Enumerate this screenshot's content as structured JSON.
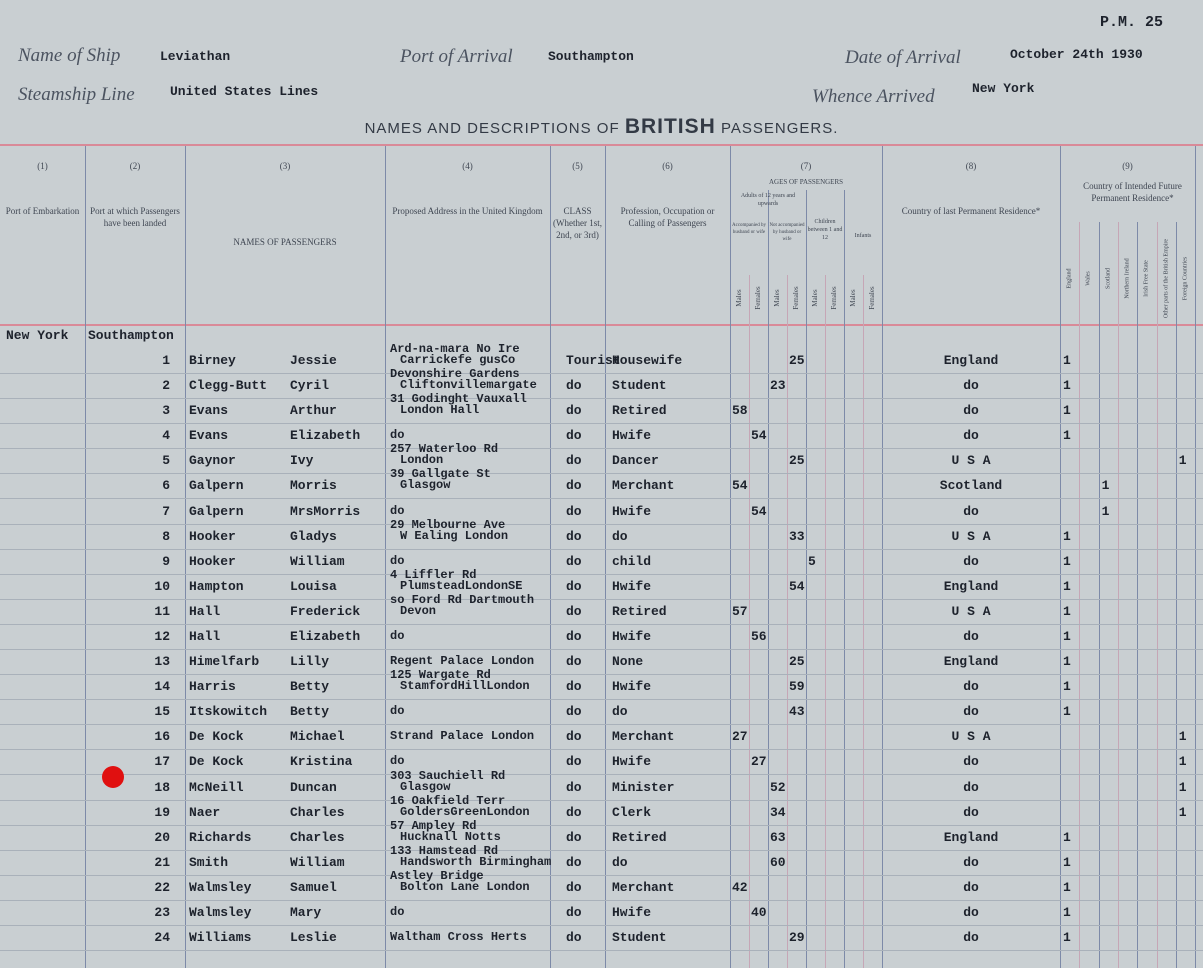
{
  "page_ref": "P.M. 25",
  "header": {
    "ship": {
      "label": "Name of Ship",
      "value": "Leviathan"
    },
    "port": {
      "label": "Port of Arrival",
      "value": "Southampton"
    },
    "date": {
      "label": "Date of Arrival",
      "value": "October 24th 1930"
    },
    "line": {
      "label": "Steamship Line",
      "value": "United States Lines"
    },
    "whence": {
      "label": "Whence Arrived",
      "value": "New York"
    }
  },
  "title": {
    "before": "NAMES AND DESCRIPTIONS OF",
    "emphasis": "BRITISH",
    "after": "PASSENGERS."
  },
  "columns": [
    {
      "num": "(1)",
      "label": "Port of Embarkation"
    },
    {
      "num": "(2)",
      "label": "Port at which Passengers have been landed"
    },
    {
      "num": "(3)",
      "label": "NAMES OF PASSENGERS"
    },
    {
      "num": "(4)",
      "label": "Proposed Address in the United Kingdom"
    },
    {
      "num": "(5)",
      "label": "CLASS (Whether 1st, 2nd, or 3rd)"
    },
    {
      "num": "(6)",
      "label": "Profession, Occupation or Calling of Passengers"
    },
    {
      "num": "(7)",
      "label": "AGES OF PASSENGERS"
    },
    {
      "num": "(8)",
      "label": "Country of last Permanent Residence*"
    },
    {
      "num": "(9)",
      "label": "Country of Intended Future Permanent Residence*"
    }
  ],
  "ages_header": {
    "adults": "Adults of 12 years and upwards",
    "accompanied": "Accompanied by husband or wife",
    "unaccompanied": "Not accompanied by husband or wife",
    "children": "Children between 1 and 12",
    "infants": "Infants",
    "male": "Males",
    "female": "Females"
  },
  "residence_countries": [
    "England",
    "Wales",
    "Scotland",
    "Northern Ireland",
    "Irish Free State",
    "Other parts of the British Empire",
    "Foreign Countries"
  ],
  "embarkation": {
    "port": "New York",
    "landed": "Southampton"
  },
  "rows": [
    {
      "no": 1,
      "surname": "Birney",
      "given": "Jessie",
      "address": [
        "Ard-na-mara No Ire",
        "Carrickefe gusCo"
      ],
      "class": "Tourist",
      "occupation": "Housewife",
      "ages": [
        null,
        null,
        null,
        25,
        null,
        null,
        null,
        null
      ],
      "last_residence": "England",
      "intended": [
        1,
        null,
        null,
        null,
        null,
        null,
        null
      ]
    },
    {
      "no": 2,
      "surname": "Clegg-Butt",
      "given": "Cyril",
      "address": [
        "Devonshire Gardens",
        "Cliftonvillemargate"
      ],
      "class": "do",
      "occupation": "Student",
      "ages": [
        null,
        null,
        23,
        null,
        null,
        null,
        null,
        null
      ],
      "last_residence": "do",
      "intended": [
        1,
        null,
        null,
        null,
        null,
        null,
        null
      ]
    },
    {
      "no": 3,
      "surname": "Evans",
      "given": "Arthur",
      "address": [
        "31 Godinght Vauxall",
        "London Hall"
      ],
      "class": "do",
      "occupation": "Retired",
      "ages": [
        58,
        null,
        null,
        null,
        null,
        null,
        null,
        null
      ],
      "last_residence": "do",
      "intended": [
        1,
        null,
        null,
        null,
        null,
        null,
        null
      ]
    },
    {
      "no": 4,
      "surname": "Evans",
      "given": "Elizabeth",
      "address": [
        "do"
      ],
      "class": "do",
      "occupation": "Hwife",
      "ages": [
        null,
        54,
        null,
        null,
        null,
        null,
        null,
        null
      ],
      "last_residence": "do",
      "intended": [
        1,
        null,
        null,
        null,
        null,
        null,
        null
      ]
    },
    {
      "no": 5,
      "surname": "Gaynor",
      "given": "Ivy",
      "address": [
        "257 Waterloo Rd",
        "London"
      ],
      "class": "do",
      "occupation": "Dancer",
      "ages": [
        null,
        null,
        null,
        25,
        null,
        null,
        null,
        null
      ],
      "last_residence": "U S A",
      "intended": [
        null,
        null,
        null,
        null,
        null,
        null,
        1
      ]
    },
    {
      "no": 6,
      "surname": "Galpern",
      "given": "Morris",
      "address": [
        "39 Gallgate St",
        "Glasgow"
      ],
      "class": "do",
      "occupation": "Merchant",
      "ages": [
        54,
        null,
        null,
        null,
        null,
        null,
        null,
        null
      ],
      "last_residence": "Scotland",
      "intended": [
        null,
        null,
        1,
        null,
        null,
        null,
        null
      ]
    },
    {
      "no": 7,
      "surname": "Galpern",
      "given": "MrsMorris",
      "address": [
        "do"
      ],
      "class": "do",
      "occupation": "Hwife",
      "ages": [
        null,
        54,
        null,
        null,
        null,
        null,
        null,
        null
      ],
      "last_residence": "do",
      "intended": [
        null,
        null,
        1,
        null,
        null,
        null,
        null
      ]
    },
    {
      "no": 8,
      "surname": "Hooker",
      "given": "Gladys",
      "address": [
        "29 Melbourne Ave",
        "W Ealing London"
      ],
      "class": "do",
      "occupation": "do",
      "ages": [
        null,
        null,
        null,
        33,
        null,
        null,
        null,
        null
      ],
      "last_residence": "U S A",
      "intended": [
        1,
        null,
        null,
        null,
        null,
        null,
        null
      ]
    },
    {
      "no": 9,
      "surname": "Hooker",
      "given": "William",
      "address": [
        "do"
      ],
      "class": "do",
      "occupation": "child",
      "ages": [
        null,
        null,
        null,
        null,
        5,
        null,
        null,
        null
      ],
      "last_residence": "do",
      "intended": [
        1,
        null,
        null,
        null,
        null,
        null,
        null
      ]
    },
    {
      "no": 10,
      "surname": "Hampton",
      "given": "Louisa",
      "address": [
        "4 Liffler Rd",
        "PlumsteadLondonSE"
      ],
      "class": "do",
      "occupation": "Hwife",
      "ages": [
        null,
        null,
        null,
        54,
        null,
        null,
        null,
        null
      ],
      "last_residence": "England",
      "intended": [
        1,
        null,
        null,
        null,
        null,
        null,
        null
      ]
    },
    {
      "no": 11,
      "surname": "Hall",
      "given": "Frederick",
      "address": [
        "so Ford Rd Dartmouth",
        "Devon"
      ],
      "class": "do",
      "occupation": "Retired",
      "ages": [
        57,
        null,
        null,
        null,
        null,
        null,
        null,
        null
      ],
      "last_residence": "U S A",
      "intended": [
        1,
        null,
        null,
        null,
        null,
        null,
        null
      ]
    },
    {
      "no": 12,
      "surname": "Hall",
      "given": "Elizabeth",
      "address": [
        "do"
      ],
      "class": "do",
      "occupation": "Hwife",
      "ages": [
        null,
        56,
        null,
        null,
        null,
        null,
        null,
        null
      ],
      "last_residence": "do",
      "intended": [
        1,
        null,
        null,
        null,
        null,
        null,
        null
      ]
    },
    {
      "no": 13,
      "surname": "Himelfarb",
      "given": "Lilly",
      "address": [
        "Regent Palace London"
      ],
      "class": "do",
      "occupation": "None",
      "ages": [
        null,
        null,
        null,
        25,
        null,
        null,
        null,
        null
      ],
      "last_residence": "England",
      "intended": [
        1,
        null,
        null,
        null,
        null,
        null,
        null
      ]
    },
    {
      "no": 14,
      "surname": "Harris",
      "given": "Betty",
      "address": [
        "125 Wargate Rd",
        "StamfordHillLondon"
      ],
      "class": "do",
      "occupation": "Hwife",
      "ages": [
        null,
        null,
        null,
        59,
        null,
        null,
        null,
        null
      ],
      "last_residence": "do",
      "intended": [
        1,
        null,
        null,
        null,
        null,
        null,
        null
      ]
    },
    {
      "no": 15,
      "surname": "Itskowitch",
      "given": "Betty",
      "address": [
        "do"
      ],
      "class": "do",
      "occupation": "do",
      "ages": [
        null,
        null,
        null,
        43,
        null,
        null,
        null,
        null
      ],
      "last_residence": "do",
      "intended": [
        1,
        null,
        null,
        null,
        null,
        null,
        null
      ]
    },
    {
      "no": 16,
      "surname": "De Kock",
      "given": "Michael",
      "address": [
        "Strand Palace London"
      ],
      "class": "do",
      "occupation": "Merchant",
      "ages": [
        27,
        null,
        null,
        null,
        null,
        null,
        null,
        null
      ],
      "last_residence": "U S A",
      "intended": [
        null,
        null,
        null,
        null,
        null,
        null,
        1
      ]
    },
    {
      "no": 17,
      "surname": "De Kock",
      "given": "Kristina",
      "address": [
        "do"
      ],
      "class": "do",
      "occupation": "Hwife",
      "ages": [
        null,
        27,
        null,
        null,
        null,
        null,
        null,
        null
      ],
      "last_residence": "do",
      "intended": [
        null,
        null,
        null,
        null,
        null,
        null,
        1
      ]
    },
    {
      "no": 18,
      "surname": "McNeill",
      "given": "Duncan",
      "address": [
        "303 Sauchiell Rd",
        "Glasgow"
      ],
      "class": "do",
      "occupation": "Minister",
      "ages": [
        null,
        null,
        52,
        null,
        null,
        null,
        null,
        null
      ],
      "last_residence": "do",
      "intended": [
        null,
        null,
        null,
        null,
        null,
        null,
        1
      ]
    },
    {
      "no": 19,
      "surname": "Naer",
      "given": "Charles",
      "address": [
        "16 Oakfield Terr",
        "GoldersGreenLondon"
      ],
      "class": "do",
      "occupation": "Clerk",
      "ages": [
        null,
        null,
        34,
        null,
        null,
        null,
        null,
        null
      ],
      "last_residence": "do",
      "intended": [
        null,
        null,
        null,
        null,
        null,
        null,
        1
      ]
    },
    {
      "no": 20,
      "surname": "Richards",
      "given": "Charles",
      "address": [
        "57 Ampley Rd",
        "Hucknall Notts"
      ],
      "class": "do",
      "occupation": "Retired",
      "ages": [
        null,
        null,
        63,
        null,
        null,
        null,
        null,
        null
      ],
      "last_residence": "England",
      "intended": [
        1,
        null,
        null,
        null,
        null,
        null,
        null
      ]
    },
    {
      "no": 21,
      "surname": "Smith",
      "given": "William",
      "address": [
        "133 Hamstead Rd",
        "Handsworth Birmingham"
      ],
      "class": "do",
      "occupation": "do",
      "ages": [
        null,
        null,
        60,
        null,
        null,
        null,
        null,
        null
      ],
      "last_residence": "do",
      "intended": [
        1,
        null,
        null,
        null,
        null,
        null,
        null
      ]
    },
    {
      "no": 22,
      "surname": "Walmsley",
      "given": "Samuel",
      "address": [
        "Astley Bridge",
        "Bolton Lane London"
      ],
      "class": "do",
      "occupation": "Merchant",
      "ages": [
        42,
        null,
        null,
        null,
        null,
        null,
        null,
        null
      ],
      "last_residence": "do",
      "intended": [
        1,
        null,
        null,
        null,
        null,
        null,
        null
      ]
    },
    {
      "no": 23,
      "surname": "Walmsley",
      "given": "Mary",
      "address": [
        "do"
      ],
      "class": "do",
      "occupation": "Hwife",
      "ages": [
        null,
        40,
        null,
        null,
        null,
        null,
        null,
        null
      ],
      "last_residence": "do",
      "intended": [
        1,
        null,
        null,
        null,
        null,
        null,
        null
      ]
    },
    {
      "no": 24,
      "surname": "Williams",
      "given": "Leslie",
      "address": [
        "Waltham Cross Herts"
      ],
      "class": "do",
      "occupation": "Student",
      "ages": [
        null,
        null,
        null,
        29,
        null,
        null,
        null,
        null
      ],
      "last_residence": "do",
      "intended": [
        1,
        null,
        null,
        null,
        null,
        null,
        null
      ]
    }
  ]
}
